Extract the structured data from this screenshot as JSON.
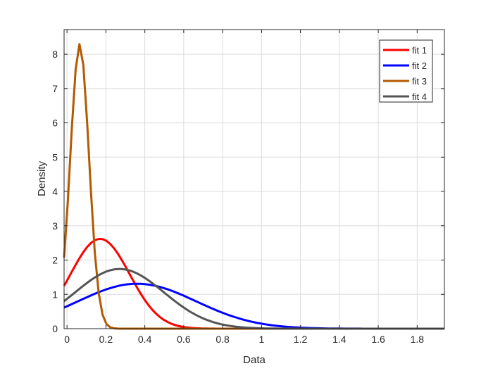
{
  "chart_data": {
    "type": "line",
    "title": "",
    "xlabel": "Data",
    "ylabel": "Density",
    "xlim": [
      -0.015,
      1.94
    ],
    "ylim": [
      0,
      8.72
    ],
    "xticks": [
      0,
      0.2,
      0.4,
      0.6,
      0.8,
      1,
      1.2,
      1.4,
      1.6,
      1.8
    ],
    "xtick_labels": [
      "0",
      "0.2",
      "0.4",
      "0.6",
      "0.8",
      "1",
      "1.2",
      "1.4",
      "1.6",
      "1.8"
    ],
    "yticks": [
      0,
      1,
      2,
      3,
      4,
      5,
      6,
      7,
      8
    ],
    "ytick_labels": [
      "0",
      "1",
      "2",
      "3",
      "4",
      "5",
      "6",
      "7",
      "8"
    ],
    "grid": true,
    "legend_placement": "top-right",
    "series": [
      {
        "name": "fit 1",
        "color": "#ff0000",
        "distribution": "normal",
        "mean": 0.17,
        "sigma": 0.152,
        "peak": 2.62
      },
      {
        "name": "fit 2",
        "color": "#0000ff",
        "distribution": "normal",
        "mean": 0.36,
        "sigma": 0.305,
        "peak": 1.31
      },
      {
        "name": "fit 3",
        "color": "#b35900",
        "distribution": "normal",
        "mean": 0.065,
        "sigma": 0.048,
        "peak": 8.3
      },
      {
        "name": "fit 4",
        "color": "#555555",
        "distribution": "normal",
        "mean": 0.27,
        "sigma": 0.229,
        "peak": 1.74
      }
    ]
  }
}
